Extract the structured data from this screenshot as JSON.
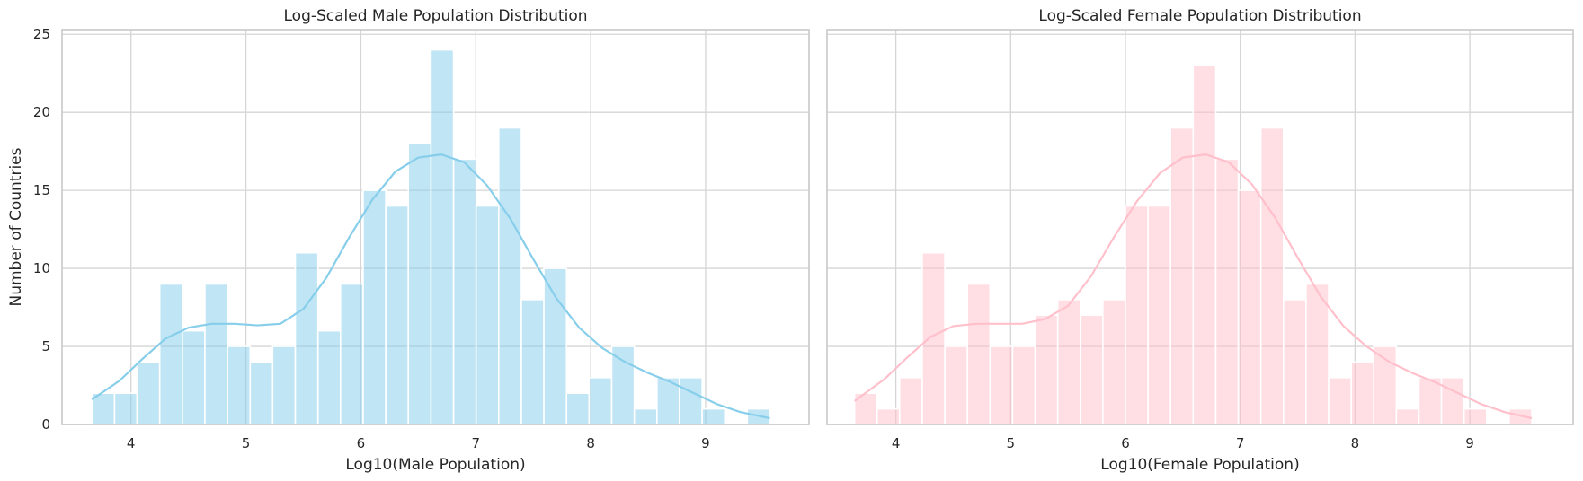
{
  "figure": {
    "shared_ylabel": "Number of Countries"
  },
  "chart_data": [
    {
      "type": "bar",
      "title": "Log-Scaled Male Population Distribution",
      "xlabel": "Log10(Male Population)",
      "ylabel": "Number of Countries",
      "xlim": [
        3.4,
        9.9
      ],
      "ylim": [
        0,
        25.3
      ],
      "xticks": [
        4,
        5,
        6,
        7,
        8,
        9
      ],
      "yticks": [
        0,
        5,
        10,
        15,
        20,
        25
      ],
      "grid": true,
      "bar_color": "#87ceeb",
      "kde_color": "#87ceeb",
      "bin_edges": [
        3.66,
        3.857,
        4.053,
        4.25,
        4.447,
        4.643,
        4.84,
        5.037,
        5.233,
        5.43,
        5.627,
        5.823,
        6.02,
        6.217,
        6.413,
        6.61,
        6.807,
        7.003,
        7.2,
        7.397,
        7.593,
        7.79,
        7.987,
        8.183,
        8.38,
        8.577,
        8.773,
        8.97,
        9.167,
        9.363,
        9.56
      ],
      "values": [
        2,
        2,
        4,
        9,
        6,
        9,
        5,
        4,
        5,
        11,
        6,
        9,
        15,
        14,
        18,
        24,
        17,
        14,
        19,
        8,
        10,
        2,
        3,
        5,
        1,
        3,
        3,
        1,
        0,
        1
      ],
      "kde": {
        "x": [
          3.66,
          3.9,
          4.1,
          4.3,
          4.5,
          4.7,
          4.9,
          5.1,
          5.3,
          5.5,
          5.7,
          5.9,
          6.1,
          6.3,
          6.5,
          6.7,
          6.9,
          7.1,
          7.3,
          7.5,
          7.7,
          7.9,
          8.1,
          8.3,
          8.5,
          8.7,
          8.9,
          9.1,
          9.3,
          9.56
        ],
        "y": [
          1.6,
          2.8,
          4.2,
          5.5,
          6.2,
          6.45,
          6.45,
          6.35,
          6.45,
          7.4,
          9.4,
          12.0,
          14.4,
          16.2,
          17.1,
          17.3,
          16.8,
          15.3,
          13.2,
          10.6,
          8.1,
          6.2,
          4.9,
          4.0,
          3.3,
          2.7,
          2.0,
          1.3,
          0.8,
          0.4
        ]
      }
    },
    {
      "type": "bar",
      "title": "Log-Scaled Female Population Distribution",
      "xlabel": "Log10(Female Population)",
      "ylabel": "",
      "xlim": [
        3.4,
        9.9
      ],
      "ylim": [
        0,
        25.3
      ],
      "xticks": [
        4,
        5,
        6,
        7,
        8,
        9
      ],
      "yticks": [
        0,
        5,
        10,
        15,
        20,
        25
      ],
      "grid": true,
      "bar_color": "#ffc0cb",
      "kde_color": "#ffc0cb",
      "bin_edges": [
        3.64,
        3.837,
        4.033,
        4.23,
        4.427,
        4.623,
        4.82,
        5.017,
        5.213,
        5.41,
        5.607,
        5.803,
        6.0,
        6.197,
        6.393,
        6.59,
        6.787,
        6.983,
        7.18,
        7.377,
        7.573,
        7.77,
        7.967,
        8.163,
        8.36,
        8.557,
        8.753,
        8.95,
        9.147,
        9.343,
        9.54
      ],
      "values": [
        2,
        1,
        3,
        11,
        5,
        9,
        5,
        5,
        7,
        8,
        7,
        8,
        14,
        14,
        19,
        23,
        17,
        15,
        19,
        8,
        9,
        3,
        4,
        5,
        1,
        3,
        3,
        1,
        0,
        1
      ],
      "kde": {
        "x": [
          3.64,
          3.9,
          4.1,
          4.3,
          4.5,
          4.7,
          4.9,
          5.1,
          5.3,
          5.5,
          5.7,
          5.9,
          6.1,
          6.3,
          6.5,
          6.7,
          6.9,
          7.1,
          7.3,
          7.5,
          7.7,
          7.9,
          8.1,
          8.3,
          8.5,
          8.7,
          8.9,
          9.1,
          9.3,
          9.54
        ],
        "y": [
          1.5,
          2.9,
          4.3,
          5.6,
          6.3,
          6.45,
          6.45,
          6.45,
          6.75,
          7.6,
          9.5,
          12.0,
          14.3,
          16.1,
          17.1,
          17.3,
          16.8,
          15.4,
          13.3,
          10.7,
          8.2,
          6.3,
          5.0,
          4.0,
          3.3,
          2.7,
          2.0,
          1.3,
          0.8,
          0.4
        ]
      }
    }
  ]
}
